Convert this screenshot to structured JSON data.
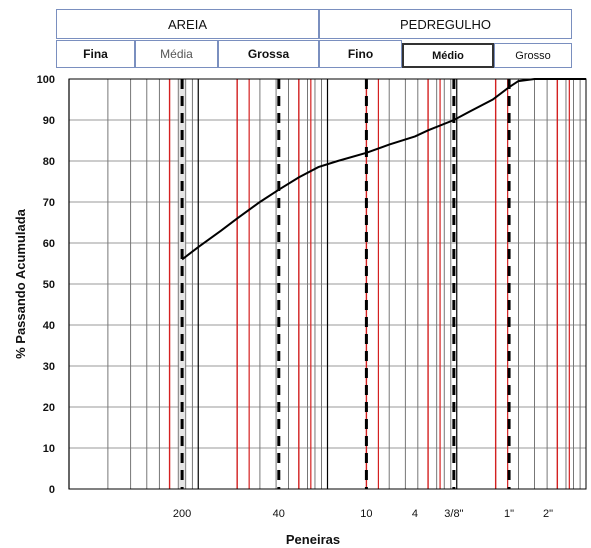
{
  "header": {
    "top": [
      "AREIA",
      "PEDREGULHO"
    ],
    "sub": [
      "Fina",
      "Média",
      "Grossa",
      "Fino",
      "Médio",
      "Grosso"
    ]
  },
  "chart_data": {
    "type": "line",
    "xlabel": "Peneiras",
    "ylabel": "% Passando Acumulada",
    "x_scale": "log",
    "xlim_mm": [
      0.01,
      100
    ],
    "ylim": [
      0,
      100
    ],
    "y_ticks": [
      0,
      10,
      20,
      30,
      40,
      50,
      60,
      70,
      80,
      90,
      100
    ],
    "x_tick_labels": [
      {
        "label": "200",
        "mm": 0.075
      },
      {
        "label": "40",
        "mm": 0.42
      },
      {
        "label": "10",
        "mm": 2.0
      },
      {
        "label": "4",
        "mm": 4.75
      },
      {
        "label": "3/8\"",
        "mm": 9.5
      },
      {
        "label": "1\"",
        "mm": 25.4
      },
      {
        "label": "2\"",
        "mm": 50.8
      }
    ],
    "sieve_lines_mm": [
      0.075,
      0.42,
      2.0,
      9.5,
      25.4
    ],
    "boundary_lines_mm": [
      0.06,
      0.2,
      0.6,
      2.0,
      6.0,
      20.0,
      60.0
    ],
    "series": [
      {
        "x": [
          0.075,
          0.1,
          0.15,
          0.2,
          0.3,
          0.42,
          0.6,
          0.85,
          1.2,
          2.0,
          3.0,
          4.75,
          6.0,
          9.5,
          12.5,
          19.0,
          25.4,
          30.0,
          40.0
        ],
        "y": [
          56,
          59,
          63,
          66,
          70,
          73,
          76,
          78.5,
          80,
          82,
          84,
          86,
          87.5,
          90,
          92,
          95,
          98,
          99.5,
          100
        ]
      }
    ],
    "grid": true
  }
}
